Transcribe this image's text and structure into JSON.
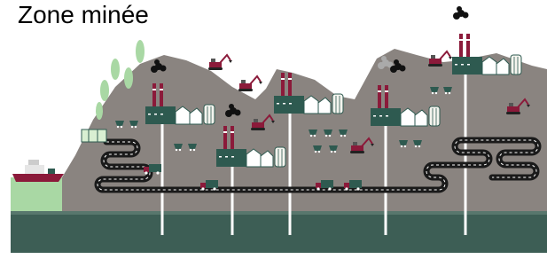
{
  "title": "Zone minée"
}
